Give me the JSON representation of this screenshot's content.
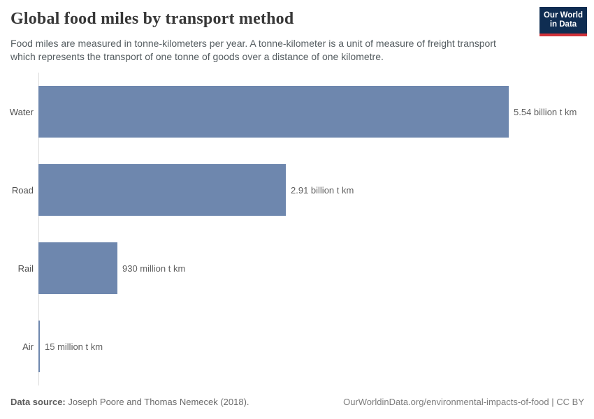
{
  "header": {
    "title": "Global food miles by transport method",
    "subtitle": "Food miles are measured in tonne-kilometers per year. A tonne-kilometer is a unit of measure of freight transport which represents the transport of one tonne of goods over a distance of one kilometre.",
    "logo": {
      "line1": "Our World",
      "line2": "in Data",
      "bg_color": "#0f2d52",
      "accent_color": "#d13239"
    }
  },
  "chart_data": {
    "type": "bar",
    "orientation": "horizontal",
    "title": "Global food miles by transport method",
    "categories": [
      "Water",
      "Road",
      "Rail",
      "Air"
    ],
    "values": [
      5.54,
      2.91,
      0.93,
      0.015
    ],
    "value_unit": "billion tonne-kilometers per year",
    "value_labels": [
      "5.54 billion t km",
      "2.91 billion t km",
      "930 million t km",
      "15 million t km"
    ],
    "xlim": [
      0,
      5.54
    ],
    "bar_color": "#6e87ae",
    "grid": false,
    "legend": false,
    "xlabel": "",
    "ylabel": ""
  },
  "footer": {
    "source_label": "Data source:",
    "source_text": " Joseph Poore and Thomas Nemecek (2018).",
    "url": "OurWorldinData.org/environmental-impacts-of-food",
    "separator": " | ",
    "license": "CC BY"
  }
}
